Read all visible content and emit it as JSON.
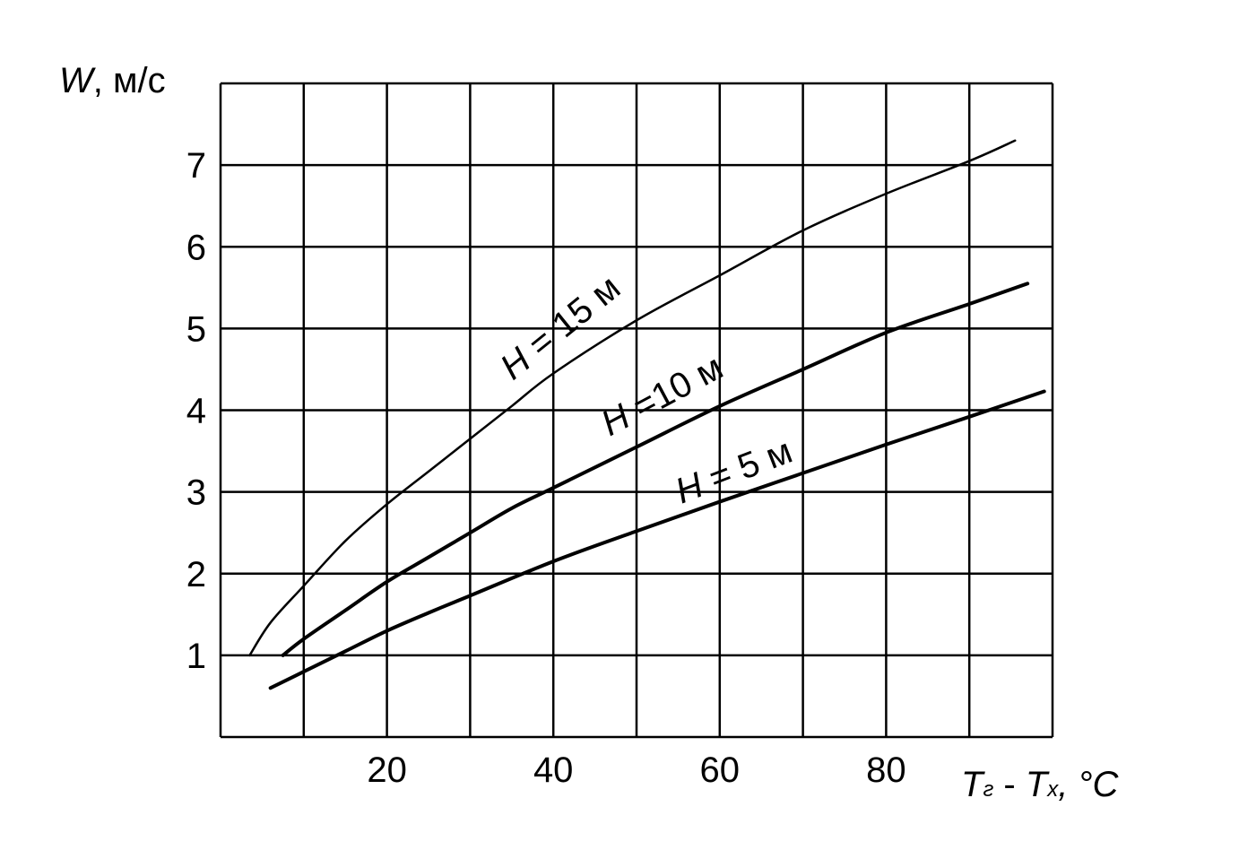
{
  "chart_data": {
    "type": "line",
    "title": "",
    "ylabel": {
      "symbol": "W",
      "unit": ", м/с"
    },
    "xlabel": {
      "t1": "T",
      "s1": "г",
      "dash": " - ",
      "t2": "T",
      "s2": "х",
      "unit": ", °C"
    },
    "xlim": [
      0,
      100
    ],
    "ylim": [
      0,
      8
    ],
    "x_ticks": [
      20,
      40,
      60,
      80
    ],
    "y_ticks": [
      1,
      2,
      3,
      4,
      5,
      6,
      7
    ],
    "grid": true,
    "series": [
      {
        "name": "H = 15 м",
        "x": [
          3.5,
          6,
          10,
          15,
          20,
          25,
          30,
          35,
          40,
          50,
          60,
          70,
          80,
          90,
          95.5
        ],
        "y": [
          1.0,
          1.4,
          1.85,
          2.4,
          2.85,
          3.25,
          3.65,
          4.05,
          4.45,
          5.1,
          5.65,
          6.2,
          6.65,
          7.05,
          7.3
        ]
      },
      {
        "name": "H =10 м",
        "x": [
          7.5,
          10,
          15,
          20,
          25,
          30,
          35,
          40,
          50,
          60,
          70,
          80,
          90,
          97
        ],
        "y": [
          1.0,
          1.2,
          1.55,
          1.9,
          2.2,
          2.5,
          2.8,
          3.05,
          3.55,
          4.05,
          4.5,
          4.95,
          5.3,
          5.55
        ]
      },
      {
        "name": "H = 5 м",
        "x": [
          6,
          10,
          15,
          20,
          25,
          30,
          40,
          50,
          60,
          70,
          80,
          90,
          99
        ],
        "y": [
          0.6,
          0.8,
          1.05,
          1.3,
          1.52,
          1.73,
          2.15,
          2.52,
          2.88,
          3.23,
          3.58,
          3.92,
          4.23
        ]
      }
    ]
  }
}
